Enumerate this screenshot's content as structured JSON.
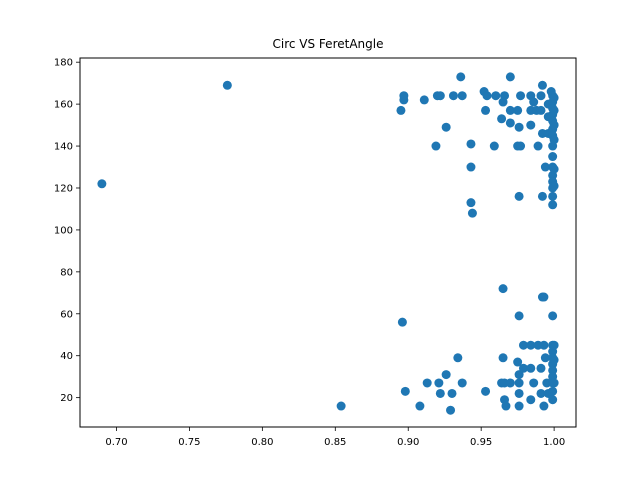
{
  "chart_data": {
    "type": "scatter",
    "title": "Circ VS FeretAngle",
    "xlabel": "",
    "ylabel": "",
    "xlim": [
      0.675,
      1.015
    ],
    "ylim": [
      6,
      182
    ],
    "xticks": [
      0.7,
      0.75,
      0.8,
      0.85,
      0.9,
      0.95,
      1.0
    ],
    "xtick_labels": [
      "0.70",
      "0.75",
      "0.80",
      "0.85",
      "0.90",
      "0.95",
      "1.00"
    ],
    "yticks": [
      20,
      40,
      60,
      80,
      100,
      120,
      140,
      160,
      180
    ],
    "ytick_labels": [
      "20",
      "40",
      "60",
      "80",
      "100",
      "120",
      "140",
      "160",
      "180"
    ],
    "grid": false,
    "marker_color": "#1f77b4",
    "series": [
      {
        "name": "points",
        "points": [
          [
            0.69,
            122
          ],
          [
            0.776,
            169
          ],
          [
            0.854,
            16
          ],
          [
            0.895,
            157
          ],
          [
            0.897,
            162
          ],
          [
            0.897,
            164
          ],
          [
            0.896,
            56
          ],
          [
            0.898,
            23
          ],
          [
            0.908,
            16
          ],
          [
            0.911,
            162
          ],
          [
            0.913,
            27
          ],
          [
            0.919,
            140
          ],
          [
            0.92,
            164
          ],
          [
            0.922,
            164
          ],
          [
            0.921,
            27
          ],
          [
            0.922,
            22
          ],
          [
            0.926,
            149
          ],
          [
            0.926,
            31
          ],
          [
            0.929,
            14
          ],
          [
            0.93,
            22
          ],
          [
            0.931,
            164
          ],
          [
            0.934,
            39
          ],
          [
            0.936,
            173
          ],
          [
            0.937,
            164
          ],
          [
            0.937,
            27
          ],
          [
            0.943,
            141
          ],
          [
            0.943,
            130
          ],
          [
            0.943,
            113
          ],
          [
            0.944,
            108
          ],
          [
            0.952,
            166
          ],
          [
            0.953,
            157
          ],
          [
            0.954,
            164
          ],
          [
            0.953,
            23
          ],
          [
            0.959,
            140
          ],
          [
            0.96,
            164
          ],
          [
            0.964,
            153
          ],
          [
            0.964,
            27
          ],
          [
            0.965,
            161
          ],
          [
            0.966,
            164
          ],
          [
            0.965,
            72
          ],
          [
            0.965,
            39
          ],
          [
            0.966,
            19
          ],
          [
            0.967,
            16
          ],
          [
            0.966,
            27
          ],
          [
            0.97,
            173
          ],
          [
            0.97,
            157
          ],
          [
            0.97,
            151
          ],
          [
            0.97,
            27
          ],
          [
            0.975,
            157
          ],
          [
            0.976,
            149
          ],
          [
            0.975,
            140
          ],
          [
            0.976,
            116
          ],
          [
            0.976,
            59
          ],
          [
            0.975,
            37
          ],
          [
            0.976,
            31
          ],
          [
            0.976,
            27
          ],
          [
            0.976,
            22
          ],
          [
            0.976,
            16
          ],
          [
            0.977,
            164
          ],
          [
            0.977,
            140
          ],
          [
            0.979,
            45
          ],
          [
            0.979,
            34
          ],
          [
            0.984,
            164
          ],
          [
            0.984,
            157
          ],
          [
            0.984,
            150
          ],
          [
            0.984,
            45
          ],
          [
            0.984,
            34
          ],
          [
            0.984,
            19
          ],
          [
            0.986,
            161
          ],
          [
            0.986,
            27
          ],
          [
            0.988,
            157
          ],
          [
            0.989,
            140
          ],
          [
            0.989,
            45
          ],
          [
            0.991,
            164
          ],
          [
            0.991,
            157
          ],
          [
            0.991,
            34
          ],
          [
            0.991,
            22
          ],
          [
            0.992,
            169
          ],
          [
            0.992,
            146
          ],
          [
            0.992,
            116
          ],
          [
            0.992,
            68
          ],
          [
            0.993,
            68
          ],
          [
            0.993,
            45
          ],
          [
            0.993,
            16
          ],
          [
            0.994,
            130
          ],
          [
            0.994,
            39
          ],
          [
            0.995,
            27
          ],
          [
            0.996,
            22
          ],
          [
            0.996,
            146
          ],
          [
            0.996,
            154
          ],
          [
            0.996,
            160
          ],
          [
            0.998,
            166
          ],
          [
            0.999,
            164
          ],
          [
            0.999,
            161
          ],
          [
            0.999,
            158
          ],
          [
            0.999,
            155
          ],
          [
            0.999,
            152
          ],
          [
            0.999,
            148
          ],
          [
            0.999,
            145
          ],
          [
            0.999,
            140
          ],
          [
            0.999,
            135
          ],
          [
            0.999,
            130
          ],
          [
            0.999,
            126
          ],
          [
            0.999,
            123
          ],
          [
            0.999,
            120
          ],
          [
            0.999,
            116
          ],
          [
            0.999,
            112
          ],
          [
            0.999,
            59
          ],
          [
            0.999,
            45
          ],
          [
            0.999,
            42
          ],
          [
            0.999,
            39
          ],
          [
            0.999,
            36
          ],
          [
            0.999,
            33
          ],
          [
            0.999,
            30
          ],
          [
            0.999,
            27
          ],
          [
            0.999,
            23
          ],
          [
            0.999,
            19
          ],
          [
            1.0,
            163
          ],
          [
            1.0,
            157
          ],
          [
            1.0,
            150
          ],
          [
            1.0,
            143
          ],
          [
            1.0,
            129
          ],
          [
            1.0,
            121
          ],
          [
            1.0,
            45
          ],
          [
            1.0,
            38
          ],
          [
            1.0,
            27
          ]
        ]
      }
    ]
  }
}
